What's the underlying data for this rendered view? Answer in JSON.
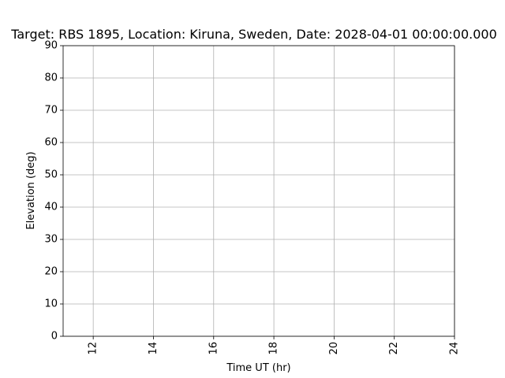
{
  "chart_data": {
    "type": "line",
    "title": "Target: RBS 1895,  Location: Kiruna, Sweden, Date: 2028-04-01 00:00:00.000",
    "xlabel": "Time UT (hr)",
    "ylabel": "Elevation (deg)",
    "xlim": [
      11,
      24
    ],
    "ylim": [
      0,
      90
    ],
    "x_ticks": [
      12,
      14,
      16,
      18,
      20,
      22,
      24
    ],
    "x_tick_labels": [
      "12",
      "14",
      "16",
      "18",
      "20",
      "22",
      "24"
    ],
    "y_ticks": [
      0,
      10,
      20,
      30,
      40,
      50,
      60,
      70,
      80,
      90
    ],
    "y_tick_labels": [
      "0",
      "10",
      "20",
      "30",
      "40",
      "50",
      "60",
      "70",
      "80",
      "90"
    ],
    "x_tick_label_rotation": "vertical",
    "grid": true,
    "series": []
  },
  "colors": {
    "grid": "#b0b0b0",
    "axes": "#000000",
    "background": "#ffffff"
  }
}
